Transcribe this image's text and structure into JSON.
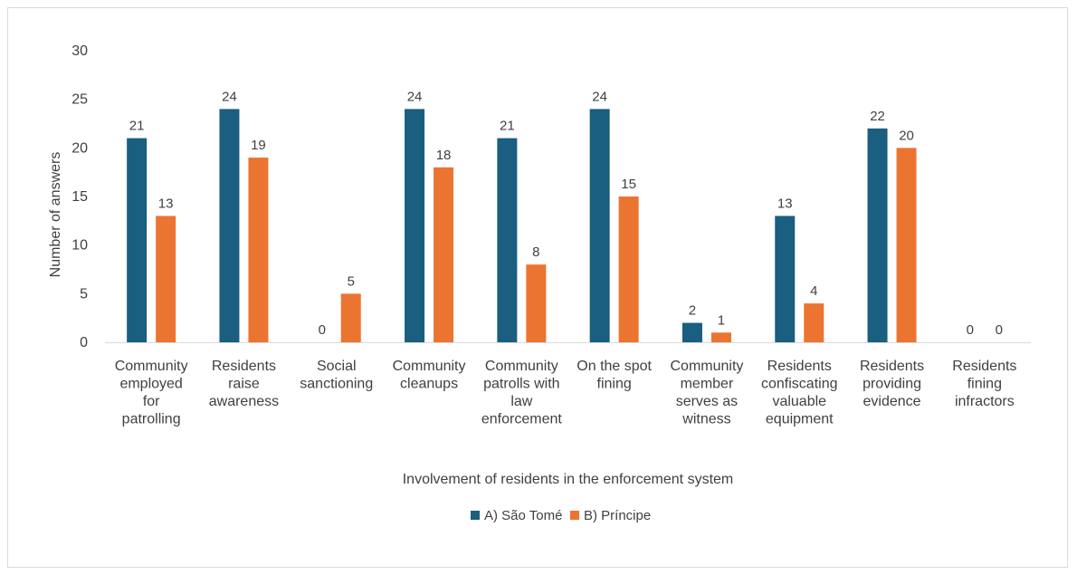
{
  "chart_data": {
    "type": "bar",
    "title": "",
    "xlabel": "Involvement of residents in the enforcement system",
    "ylabel": "Number of answers",
    "ylim": [
      0,
      30
    ],
    "yticks": [
      0,
      5,
      10,
      15,
      20,
      25,
      30
    ],
    "grid": false,
    "legend_position": "bottom",
    "categories": [
      [
        "Community",
        "employed",
        "for",
        "patrolling"
      ],
      [
        "Residents",
        "raise",
        "awareness"
      ],
      [
        "Social",
        "sanctioning"
      ],
      [
        "Community",
        "cleanups"
      ],
      [
        "Community",
        "patrolls with",
        "law",
        "enforcement"
      ],
      [
        "On the spot",
        "fining"
      ],
      [
        "Community",
        "member",
        "serves as",
        "witness"
      ],
      [
        "Residents",
        "confiscating",
        "valuable",
        "equipment"
      ],
      [
        "Residents",
        "providing",
        "evidence"
      ],
      [
        "Residents",
        "fining",
        "infractors"
      ]
    ],
    "series": [
      {
        "name": "A) São Tomé",
        "color": "#1a5e80",
        "values": [
          21,
          24,
          0,
          24,
          21,
          24,
          2,
          13,
          22,
          0
        ]
      },
      {
        "name": "B) Príncipe",
        "color": "#ec7431",
        "values": [
          13,
          19,
          5,
          18,
          8,
          15,
          1,
          4,
          20,
          0
        ]
      }
    ]
  }
}
